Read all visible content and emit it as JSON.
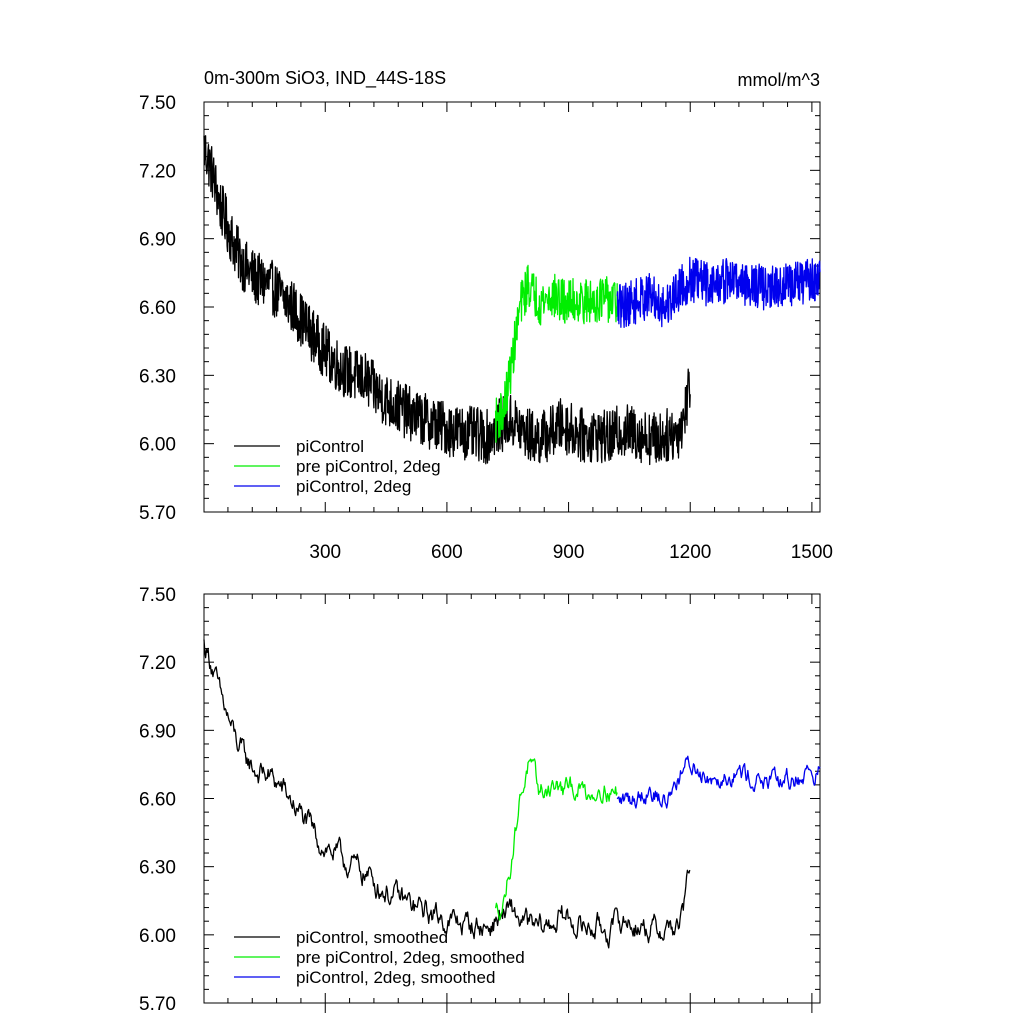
{
  "figure": {
    "title_left": "0m-300m SiO3, IND_44S-18S",
    "title_right": "mmol/m^3"
  },
  "chart_data": [
    {
      "type": "line",
      "panel": "top",
      "title": "0m-300m SiO3, IND_44S-18S",
      "units": "mmol/m^3",
      "xlim": [
        1,
        1520
      ],
      "ylim": [
        5.7,
        7.5
      ],
      "xticks": [
        300,
        600,
        900,
        1200,
        1500
      ],
      "xtick_labels": [
        "300",
        "600",
        "900",
        "1200",
        "1500"
      ],
      "yticks": [
        5.7,
        6.0,
        6.3,
        6.6,
        6.9,
        7.2,
        7.5
      ],
      "ytick_labels": [
        "5.70",
        "6.00",
        "6.30",
        "6.60",
        "6.90",
        "7.20",
        "7.50"
      ],
      "legend_position": "bottom-left",
      "series": [
        {
          "name": "piControl",
          "color": "#000000",
          "x_range": [
            1,
            1200
          ],
          "points": [
            [
              1,
              7.3
            ],
            [
              20,
              7.2
            ],
            [
              40,
              7.05
            ],
            [
              60,
              6.95
            ],
            [
              80,
              6.85
            ],
            [
              100,
              6.78
            ],
            [
              130,
              6.72
            ],
            [
              160,
              6.7
            ],
            [
              190,
              6.65
            ],
            [
              220,
              6.6
            ],
            [
              250,
              6.52
            ],
            [
              280,
              6.45
            ],
            [
              310,
              6.38
            ],
            [
              340,
              6.33
            ],
            [
              370,
              6.3
            ],
            [
              400,
              6.28
            ],
            [
              430,
              6.22
            ],
            [
              460,
              6.18
            ],
            [
              490,
              6.15
            ],
            [
              520,
              6.12
            ],
            [
              550,
              6.1
            ],
            [
              580,
              6.08
            ],
            [
              610,
              6.06
            ],
            [
              640,
              6.05
            ],
            [
              670,
              6.04
            ],
            [
              700,
              6.03
            ],
            [
              730,
              6.08
            ],
            [
              760,
              6.1
            ],
            [
              790,
              6.05
            ],
            [
              820,
              6.02
            ],
            [
              850,
              6.04
            ],
            [
              880,
              6.08
            ],
            [
              910,
              6.06
            ],
            [
              940,
              6.03
            ],
            [
              970,
              6.04
            ],
            [
              1000,
              6.02
            ],
            [
              1030,
              6.06
            ],
            [
              1060,
              6.05
            ],
            [
              1090,
              6.03
            ],
            [
              1120,
              6.02
            ],
            [
              1150,
              6.04
            ],
            [
              1170,
              6.05
            ],
            [
              1185,
              6.12
            ],
            [
              1200,
              6.28
            ]
          ],
          "noise": 0.12
        },
        {
          "name": "pre piControl, 2deg",
          "color": "#00ee00",
          "x_range": [
            720,
            1020
          ],
          "points": [
            [
              720,
              6.1
            ],
            [
              740,
              6.15
            ],
            [
              760,
              6.35
            ],
            [
              780,
              6.6
            ],
            [
              800,
              6.7
            ],
            [
              830,
              6.62
            ],
            [
              860,
              6.65
            ],
            [
              890,
              6.62
            ],
            [
              920,
              6.63
            ],
            [
              950,
              6.62
            ],
            [
              980,
              6.64
            ],
            [
              1000,
              6.63
            ],
            [
              1020,
              6.62
            ]
          ],
          "noise": 0.1
        },
        {
          "name": "piControl, 2deg",
          "color": "#0000ee",
          "x_range": [
            1020,
            1520
          ],
          "points": [
            [
              1020,
              6.6
            ],
            [
              1060,
              6.62
            ],
            [
              1100,
              6.65
            ],
            [
              1140,
              6.6
            ],
            [
              1170,
              6.68
            ],
            [
              1200,
              6.72
            ],
            [
              1250,
              6.7
            ],
            [
              1300,
              6.72
            ],
            [
              1350,
              6.7
            ],
            [
              1400,
              6.68
            ],
            [
              1450,
              6.7
            ],
            [
              1500,
              6.72
            ],
            [
              1520,
              6.72
            ]
          ],
          "noise": 0.1
        }
      ]
    },
    {
      "type": "line",
      "panel": "bottom",
      "xlim": [
        1,
        1520
      ],
      "ylim": [
        5.7,
        7.5
      ],
      "xticks": [
        300,
        600,
        900,
        1200,
        1500
      ],
      "yticks": [
        5.7,
        6.0,
        6.3,
        6.6,
        6.9,
        7.2,
        7.5
      ],
      "ytick_labels": [
        "5.70",
        "6.00",
        "6.30",
        "6.60",
        "6.90",
        "7.20",
        "7.50"
      ],
      "legend_position": "bottom-left",
      "series": [
        {
          "name": "piControl, smoothed",
          "color": "#000000",
          "x_range": [
            1,
            1200
          ],
          "points": [
            [
              1,
              7.28
            ],
            [
              20,
              7.2
            ],
            [
              40,
              7.05
            ],
            [
              60,
              6.95
            ],
            [
              80,
              6.85
            ],
            [
              100,
              6.78
            ],
            [
              130,
              6.72
            ],
            [
              160,
              6.7
            ],
            [
              190,
              6.65
            ],
            [
              220,
              6.58
            ],
            [
              250,
              6.5
            ],
            [
              280,
              6.42
            ],
            [
              310,
              6.38
            ],
            [
              340,
              6.33
            ],
            [
              370,
              6.3
            ],
            [
              400,
              6.27
            ],
            [
              430,
              6.22
            ],
            [
              460,
              6.18
            ],
            [
              490,
              6.15
            ],
            [
              520,
              6.12
            ],
            [
              550,
              6.1
            ],
            [
              580,
              6.08
            ],
            [
              610,
              6.06
            ],
            [
              640,
              6.05
            ],
            [
              670,
              6.04
            ],
            [
              700,
              6.03
            ],
            [
              730,
              6.08
            ],
            [
              760,
              6.1
            ],
            [
              790,
              6.05
            ],
            [
              820,
              6.02
            ],
            [
              850,
              6.04
            ],
            [
              880,
              6.08
            ],
            [
              910,
              6.06
            ],
            [
              940,
              6.03
            ],
            [
              970,
              6.04
            ],
            [
              1000,
              6.02
            ],
            [
              1030,
              6.06
            ],
            [
              1060,
              6.05
            ],
            [
              1090,
              6.03
            ],
            [
              1120,
              6.02
            ],
            [
              1150,
              6.04
            ],
            [
              1170,
              6.02
            ],
            [
              1185,
              6.12
            ],
            [
              1200,
              6.32
            ]
          ],
          "noise": 0.07
        },
        {
          "name": "pre piControl, 2deg, smoothed",
          "color": "#00ee00",
          "x_range": [
            720,
            1020
          ],
          "points": [
            [
              720,
              6.1
            ],
            [
              740,
              6.15
            ],
            [
              760,
              6.35
            ],
            [
              780,
              6.6
            ],
            [
              800,
              6.75
            ],
            [
              830,
              6.62
            ],
            [
              860,
              6.66
            ],
            [
              890,
              6.63
            ],
            [
              920,
              6.65
            ],
            [
              950,
              6.62
            ],
            [
              980,
              6.66
            ],
            [
              1000,
              6.64
            ],
            [
              1020,
              6.62
            ]
          ],
          "noise": 0.06
        },
        {
          "name": "piControl, 2deg, smoothed",
          "color": "#0000ee",
          "x_range": [
            1020,
            1520
          ],
          "points": [
            [
              1020,
              6.58
            ],
            [
              1060,
              6.6
            ],
            [
              1100,
              6.65
            ],
            [
              1140,
              6.58
            ],
            [
              1170,
              6.7
            ],
            [
              1200,
              6.75
            ],
            [
              1250,
              6.7
            ],
            [
              1300,
              6.72
            ],
            [
              1350,
              6.7
            ],
            [
              1400,
              6.66
            ],
            [
              1450,
              6.68
            ],
            [
              1500,
              6.72
            ],
            [
              1520,
              6.72
            ]
          ],
          "noise": 0.06
        }
      ]
    }
  ]
}
